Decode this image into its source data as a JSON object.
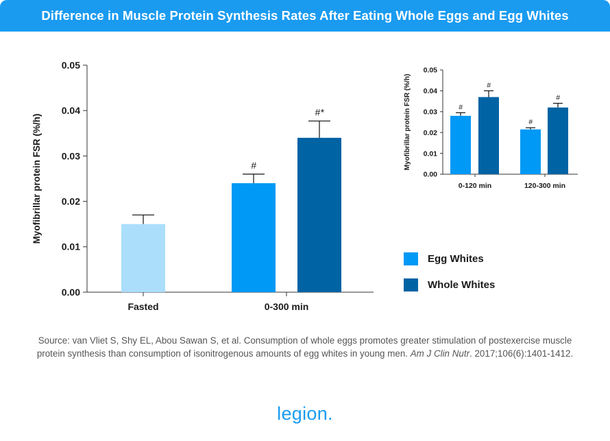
{
  "header": {
    "title": "Difference in Muscle Protein Synthesis Rates After Eating Whole Eggs and Egg Whites"
  },
  "colors": {
    "header_bg": "#1a9bf0",
    "fasted": "#abdefb",
    "egg_whites": "#0099f5",
    "whole": "#0063a4",
    "axis": "#333333"
  },
  "chart_data": [
    {
      "type": "bar",
      "title": "",
      "xlabel": "",
      "ylabel": "Myofibrillar protein FSR (%/h)",
      "ylim": [
        0,
        0.05
      ],
      "yticks": [
        "0.00",
        "0.01",
        "0.02",
        "0.03",
        "0.04",
        "0.05"
      ],
      "categories": [
        "Fasted",
        "0-300 min"
      ],
      "bars": [
        {
          "category": "Fasted",
          "group": "fasted",
          "value": 0.015,
          "error": 0.002,
          "annotation": ""
        },
        {
          "category": "0-300 min",
          "group": "egg_whites",
          "value": 0.024,
          "error": 0.002,
          "annotation": "#"
        },
        {
          "category": "0-300 min",
          "group": "whole",
          "value": 0.034,
          "error": 0.0037,
          "annotation": "#*"
        }
      ]
    },
    {
      "type": "bar",
      "title": "",
      "xlabel": "",
      "ylabel": "Myofibrillar protein FSR (%/h)",
      "ylim": [
        0,
        0.05
      ],
      "yticks": [
        "0.00",
        "0.01",
        "0.02",
        "0.03",
        "0.04",
        "0.05"
      ],
      "categories": [
        "0-120 min",
        "120-300 min"
      ],
      "bars": [
        {
          "category": "0-120 min",
          "group": "egg_whites",
          "value": 0.028,
          "error": 0.0015,
          "annotation": "#"
        },
        {
          "category": "0-120 min",
          "group": "whole",
          "value": 0.037,
          "error": 0.003,
          "annotation": "#"
        },
        {
          "category": "120-300 min",
          "group": "egg_whites",
          "value": 0.0215,
          "error": 0.0008,
          "annotation": "#"
        },
        {
          "category": "120-300 min",
          "group": "whole",
          "value": 0.032,
          "error": 0.002,
          "annotation": "#"
        }
      ]
    }
  ],
  "legend": [
    {
      "label": "Egg Whites",
      "color": "#0099f5"
    },
    {
      "label": "Whole Whites",
      "color": "#0063a4"
    }
  ],
  "source": {
    "text": "Source: van Vliet S, Shy EL, Abou Sawan S, et al. Consumption of whole eggs promotes greater stimulation of postexercise muscle protein synthesis than consumption of isonitrogenous amounts of egg whites in young men. ",
    "journal": "Am J Clin Nutr",
    "citation": ". 2017;106(6):1401-1412."
  },
  "logo": {
    "text": "legion."
  }
}
